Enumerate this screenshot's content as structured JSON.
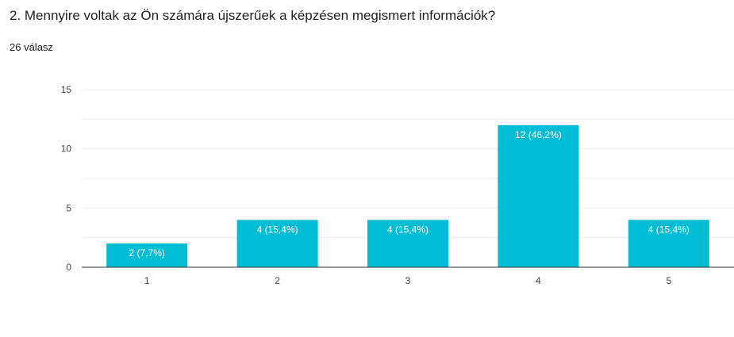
{
  "header": {
    "title": "2. Mennyire voltak az Ön számára újszerűek a képzésen megismert információk?",
    "response_count": "26 válasz"
  },
  "colors": {
    "bar": "#00bcd4",
    "gridline": "#ebebeb",
    "baseline": "#333333",
    "tick_text": "#444444",
    "data_label_text": "#ffffff"
  },
  "chart_data": {
    "type": "bar",
    "categories": [
      "1",
      "2",
      "3",
      "4",
      "5"
    ],
    "values": [
      2,
      4,
      4,
      12,
      4
    ],
    "data_labels": [
      "2 (7,7%)",
      "4 (15,4%)",
      "4 (15,4%)",
      "12 (46,2%)",
      "4 (15,4%)"
    ],
    "ylim": [
      0,
      15
    ],
    "yticks": [
      0,
      5,
      10,
      15
    ],
    "ytick_labels": [
      "0",
      "5",
      "10",
      "15"
    ],
    "grid": true,
    "legend": "none"
  }
}
